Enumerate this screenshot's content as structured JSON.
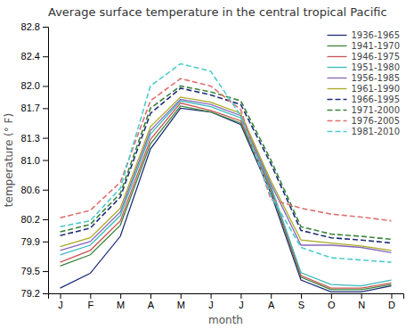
{
  "chart_data": {
    "type": "line",
    "title": "Average surface temperature in the central tropical Pacific",
    "x_label": "month",
    "y_label": "temperature (° F)",
    "categories": [
      "J",
      "F",
      "M",
      "A",
      "M",
      "J",
      "J",
      "A",
      "S",
      "O",
      "N",
      "D"
    ],
    "ylim": [
      79.2,
      82.8
    ],
    "yticks": [
      79.2,
      79.5,
      79.9,
      80.2,
      80.6,
      {
        "value": 81.0,
        "label": "81.0"
      },
      81.3,
      81.7,
      {
        "value": 82.0,
        "label": "82.0"
      },
      82.4,
      82.8
    ],
    "grid": false,
    "legend": "upper right",
    "series": [
      {
        "name": "1936-1965",
        "color": "#1e2d78",
        "line_style": "solid",
        "values": [
          79.27,
          79.47,
          79.97,
          81.15,
          81.7,
          81.65,
          81.48,
          80.55,
          79.38,
          79.22,
          79.22,
          79.3
        ]
      },
      {
        "name": "1941-1970",
        "color": "#3a843a",
        "line_style": "solid",
        "values": [
          79.57,
          79.72,
          80.12,
          81.22,
          81.73,
          81.65,
          81.5,
          80.6,
          79.42,
          79.25,
          79.25,
          79.32
        ]
      },
      {
        "name": "1946-1975",
        "color": "#cc5555",
        "line_style": "solid",
        "values": [
          79.62,
          79.78,
          80.18,
          81.28,
          81.77,
          81.67,
          81.53,
          80.62,
          79.44,
          79.27,
          79.27,
          79.34
        ]
      },
      {
        "name": "1951-1980",
        "color": "#38baba",
        "line_style": "solid",
        "values": [
          79.72,
          79.85,
          80.25,
          81.35,
          81.8,
          81.72,
          81.57,
          80.65,
          79.48,
          79.32,
          79.3,
          79.38
        ]
      },
      {
        "name": "1956-1985",
        "color": "#8866bb",
        "line_style": "solid",
        "values": [
          79.78,
          79.9,
          80.3,
          81.4,
          81.82,
          81.75,
          81.6,
          80.68,
          79.85,
          79.85,
          79.82,
          79.75
        ]
      },
      {
        "name": "1961-1990",
        "color": "#aaaa22",
        "line_style": "solid",
        "values": [
          79.83,
          79.95,
          80.35,
          81.45,
          81.85,
          81.78,
          81.63,
          80.72,
          79.92,
          79.88,
          79.84,
          79.78
        ]
      },
      {
        "name": "1966-1995",
        "color": "#1e2d78",
        "line_style": "dashed",
        "values": [
          79.98,
          80.08,
          80.5,
          81.63,
          81.97,
          81.88,
          81.75,
          80.95,
          80.05,
          79.95,
          79.92,
          79.88
        ]
      },
      {
        "name": "1971-2000",
        "color": "#3a843a",
        "line_style": "dashed",
        "values": [
          80.03,
          80.13,
          80.55,
          81.7,
          82.0,
          81.92,
          81.8,
          81.0,
          80.1,
          80.0,
          79.97,
          79.93
        ]
      },
      {
        "name": "1976-2005",
        "color": "#e07070",
        "line_style": "dashed",
        "values": [
          80.22,
          80.32,
          80.7,
          81.8,
          82.1,
          82.0,
          81.68,
          80.47,
          80.35,
          80.27,
          80.23,
          80.18
        ]
      },
      {
        "name": "1981-2010",
        "color": "#50cccc",
        "line_style": "dashed",
        "values": [
          80.1,
          80.18,
          80.62,
          82.0,
          82.3,
          82.2,
          81.6,
          80.52,
          79.82,
          79.68,
          79.65,
          79.62
        ]
      }
    ]
  }
}
